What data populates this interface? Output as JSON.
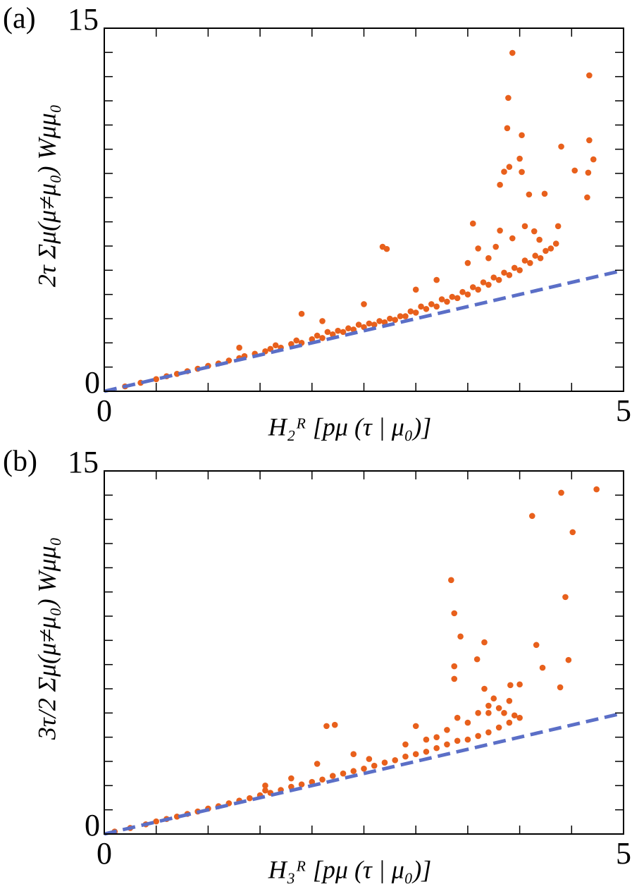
{
  "chart_data": [
    {
      "type": "scatter",
      "panel_label": "(a)",
      "xlabel": "H₂ᴿ [pμ (τ | μ₀)]",
      "ylabel": "2τ Σμ(μ≠μ₀) Wμμ₀",
      "xlim": [
        0,
        5
      ],
      "ylim": [
        0,
        15
      ],
      "xticks": [
        0,
        5
      ],
      "yticks": [
        0,
        15
      ],
      "xticks_minor": [
        0.5,
        1,
        1.5,
        2,
        2.5,
        3,
        3.5,
        4,
        4.5
      ],
      "yticks_minor": [
        1,
        2,
        3,
        4,
        5,
        6,
        7,
        8,
        9,
        10,
        11,
        12,
        13,
        14
      ],
      "points": {
        "color": "#e8601c",
        "x": [
          0.2,
          0.35,
          0.5,
          0.6,
          0.7,
          0.8,
          0.9,
          1.0,
          1.1,
          1.2,
          1.3,
          1.35,
          1.45,
          1.55,
          1.6,
          1.65,
          1.7,
          1.8,
          1.85,
          1.9,
          2.0,
          2.05,
          2.1,
          2.15,
          2.2,
          2.25,
          2.3,
          2.35,
          2.4,
          2.45,
          2.5,
          2.55,
          2.6,
          2.65,
          2.7,
          2.75,
          2.8,
          2.85,
          2.9,
          2.95,
          3.0,
          3.05,
          3.1,
          3.15,
          3.2,
          3.25,
          3.3,
          3.35,
          3.4,
          3.45,
          3.5,
          3.55,
          3.6,
          3.65,
          3.7,
          3.75,
          3.8,
          3.85,
          3.9,
          3.95,
          4.0,
          4.05,
          4.1,
          4.15,
          4.2,
          4.25,
          4.3,
          4.35,
          1.3,
          1.9,
          2.1,
          2.5,
          2.68,
          2.72,
          3.0,
          3.2,
          3.5,
          3.55,
          3.6,
          3.7,
          3.77,
          3.93,
          4.67,
          3.89,
          3.88,
          4.02,
          4.4,
          4.67,
          4.0,
          4.71,
          3.85,
          3.9,
          4.02,
          3.81,
          4.53,
          4.66,
          4.09,
          4.24,
          4.65,
          4.05,
          4.37,
          3.81,
          3.93,
          4.14,
          4.19
        ],
        "y": [
          0.2,
          0.35,
          0.5,
          0.62,
          0.72,
          0.83,
          0.93,
          1.05,
          1.15,
          1.27,
          1.37,
          1.45,
          1.55,
          1.65,
          1.75,
          1.9,
          1.8,
          1.95,
          2.1,
          2.0,
          2.15,
          2.3,
          2.2,
          2.45,
          2.35,
          2.5,
          2.45,
          2.6,
          2.55,
          2.75,
          2.65,
          2.8,
          2.75,
          2.9,
          2.85,
          3.0,
          2.95,
          3.1,
          3.1,
          3.3,
          3.25,
          3.5,
          3.4,
          3.6,
          3.5,
          3.8,
          3.7,
          3.9,
          3.85,
          4.1,
          4.0,
          4.3,
          4.2,
          4.5,
          4.4,
          4.7,
          4.6,
          4.9,
          4.8,
          5.1,
          5.0,
          5.4,
          5.3,
          5.6,
          5.5,
          5.8,
          5.9,
          6.1,
          1.8,
          3.2,
          2.9,
          3.6,
          5.97,
          5.88,
          4.2,
          4.6,
          5.3,
          6.93,
          5.9,
          5.5,
          5.97,
          13.98,
          13.05,
          12.12,
          10.87,
          10.58,
          10.11,
          10.37,
          9.61,
          9.58,
          9.07,
          9.27,
          9.06,
          8.53,
          9.12,
          9.03,
          8.13,
          8.16,
          8.01,
          6.82,
          6.82,
          6.64,
          6.32,
          6.61,
          6.26
        ]
      },
      "line": {
        "color": "#5b6fc7",
        "x": [
          0,
          5
        ],
        "y": [
          0,
          5
        ]
      }
    },
    {
      "type": "scatter",
      "panel_label": "(b)",
      "xlabel": "H₃ᴿ [pμ (τ | μ₀)]",
      "ylabel": "3τ/2 Σμ(μ≠μ₀) Wμμ₀",
      "xlim": [
        0,
        5
      ],
      "ylim": [
        0,
        15
      ],
      "xticks": [
        0,
        5
      ],
      "yticks": [
        0,
        15
      ],
      "xticks_minor": [
        0.5,
        1,
        1.5,
        2,
        2.5,
        3,
        3.5,
        4,
        4.5
      ],
      "yticks_minor": [
        1,
        2,
        3,
        4,
        5,
        6,
        7,
        8,
        9,
        10,
        11,
        12,
        13,
        14
      ],
      "points": {
        "color": "#e8601c",
        "x": [
          0.1,
          0.25,
          0.4,
          0.5,
          0.6,
          0.7,
          0.8,
          0.9,
          1.0,
          1.1,
          1.2,
          1.3,
          1.4,
          1.5,
          1.55,
          1.6,
          1.7,
          1.8,
          1.9,
          2.0,
          2.1,
          2.2,
          2.3,
          2.4,
          2.5,
          2.6,
          2.7,
          2.8,
          2.9,
          3.0,
          3.1,
          3.2,
          3.3,
          3.4,
          3.5,
          3.6,
          3.7,
          3.8,
          3.9,
          4.0,
          1.55,
          1.8,
          2.05,
          2.14,
          2.22,
          2.4,
          2.55,
          2.9,
          3.0,
          3.1,
          3.2,
          3.3,
          3.4,
          3.5,
          3.6,
          3.7,
          3.75,
          3.8,
          3.85,
          3.9,
          3.95,
          3.66,
          3.7,
          4.4,
          4.74,
          4.12,
          4.51,
          3.34,
          3.37,
          3.43,
          4.44,
          4.16,
          3.66,
          3.59,
          3.37,
          3.37,
          4.22,
          4.47,
          3.91,
          4.0,
          4.39
        ],
        "y": [
          0.1,
          0.25,
          0.4,
          0.52,
          0.62,
          0.72,
          0.83,
          0.93,
          1.05,
          1.15,
          1.27,
          1.38,
          1.48,
          1.6,
          1.8,
          1.7,
          1.82,
          1.95,
          2.05,
          2.15,
          2.25,
          2.4,
          2.5,
          2.6,
          2.7,
          2.82,
          2.95,
          3.05,
          3.2,
          3.3,
          3.4,
          3.55,
          3.7,
          3.85,
          3.9,
          4.05,
          4.2,
          4.4,
          4.6,
          4.8,
          2.0,
          2.3,
          2.9,
          4.46,
          4.51,
          3.3,
          3.1,
          3.7,
          4.46,
          3.9,
          4.0,
          4.3,
          4.8,
          4.6,
          5.0,
          5.3,
          5.6,
          5.2,
          5.0,
          5.5,
          4.9,
          6.0,
          5.0,
          14.1,
          14.24,
          13.14,
          12.47,
          10.49,
          9.12,
          8.16,
          9.79,
          7.81,
          7.92,
          7.22,
          6.93,
          6.41,
          6.87,
          7.19,
          6.15,
          6.18,
          6.06
        ]
      },
      "line": {
        "color": "#5b6fc7",
        "x": [
          0,
          5
        ],
        "y": [
          0,
          5
        ]
      }
    }
  ]
}
